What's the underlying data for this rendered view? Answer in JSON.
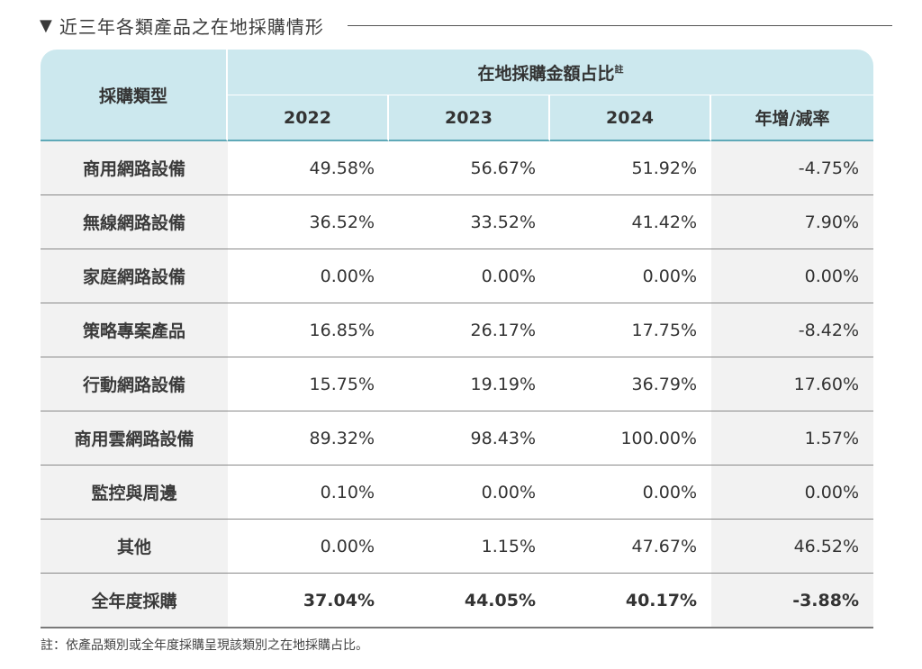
{
  "section_title": "近三年各類產品之在地採購情形",
  "table": {
    "category_header": "採購類型",
    "group_header": "在地採購金額占比",
    "group_header_sup": "註",
    "columns": [
      "2022",
      "2023",
      "2024",
      "年增/減率"
    ],
    "rows": [
      {
        "category": "商用網路設備",
        "values": [
          "49.58%",
          "56.67%",
          "51.92%",
          "-4.75%"
        ]
      },
      {
        "category": "無線網路設備",
        "values": [
          "36.52%",
          "33.52%",
          "41.42%",
          "7.90%"
        ]
      },
      {
        "category": "家庭網路設備",
        "values": [
          "0.00%",
          "0.00%",
          "0.00%",
          "0.00%"
        ]
      },
      {
        "category": "策略專案產品",
        "values": [
          "16.85%",
          "26.17%",
          "17.75%",
          "-8.42%"
        ]
      },
      {
        "category": "行動網路設備",
        "values": [
          "15.75%",
          "19.19%",
          "36.79%",
          "17.60%"
        ]
      },
      {
        "category": "商用雲網路設備",
        "values": [
          "89.32%",
          "98.43%",
          "100.00%",
          "1.57%"
        ]
      },
      {
        "category": "監控與周邊",
        "values": [
          "0.10%",
          "0.00%",
          "0.00%",
          "0.00%"
        ]
      },
      {
        "category": "其他",
        "values": [
          "0.00%",
          "1.15%",
          "47.67%",
          "46.52%"
        ]
      }
    ],
    "total": {
      "category": "全年度採購",
      "values": [
        "37.04%",
        "44.05%",
        "40.17%",
        "-3.88%"
      ]
    }
  },
  "note": "註：依產品類別或全年度採購呈現該類別之在地採購占比。",
  "colors": {
    "header_bg": "#cce8ee",
    "header_rule": "#5fa9b8",
    "row_shade": "#f2f2f2"
  }
}
